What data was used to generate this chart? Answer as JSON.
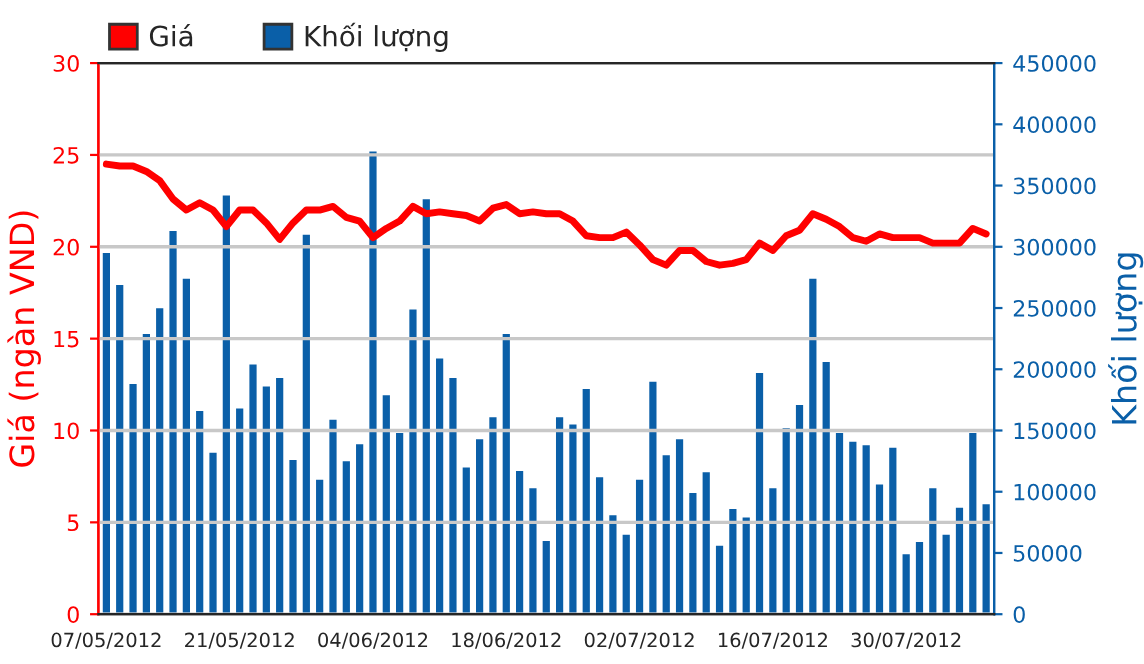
{
  "chart_data": {
    "type": "bar",
    "ylabel": "Giá (ngàn VND)",
    "y2label": "Khối lượng",
    "categories": [
      "07/05/2012",
      null,
      null,
      null,
      null,
      null,
      null,
      null,
      null,
      null,
      "21/05/2012",
      null,
      null,
      null,
      null,
      null,
      null,
      null,
      null,
      null,
      "04/06/2012",
      null,
      null,
      null,
      null,
      null,
      null,
      null,
      null,
      null,
      "18/06/2012",
      null,
      null,
      null,
      null,
      null,
      null,
      null,
      null,
      null,
      "02/07/2012",
      null,
      null,
      null,
      null,
      null,
      null,
      null,
      null,
      null,
      "16/07/2012",
      null,
      null,
      null,
      null,
      null,
      null,
      null,
      null,
      null,
      "30/07/2012",
      null,
      null,
      null,
      null,
      null,
      null
    ],
    "series": [
      {
        "name": "Khối lượng",
        "axis": "y2",
        "color": "#0a5fa8",
        "values": [
          296000,
          270000,
          189000,
          230000,
          251000,
          314000,
          275000,
          167000,
          133000,
          343000,
          169000,
          205000,
          187000,
          194000,
          127000,
          311000,
          111000,
          160000,
          126000,
          140000,
          379000,
          180000,
          149000,
          250000,
          340000,
          210000,
          194000,
          121000,
          144000,
          162000,
          230000,
          118000,
          104000,
          61000,
          162000,
          156000,
          185000,
          113000,
          82000,
          66000,
          111000,
          191000,
          131000,
          144000,
          100000,
          117000,
          57000,
          87000,
          80000,
          198000,
          104000,
          153000,
          172000,
          275000,
          207000,
          149000,
          142000,
          139000,
          107000,
          137000,
          50000,
          60000,
          104000,
          66000,
          88000,
          149000,
          91000
        ]
      },
      {
        "name": "Giá",
        "type": "line",
        "axis": "y",
        "color": "#ff0000",
        "values": [
          24.5,
          24.4,
          24.4,
          24.1,
          23.6,
          22.6,
          22.0,
          22.4,
          22.0,
          21.1,
          22.0,
          22.0,
          21.3,
          20.4,
          21.3,
          22.0,
          22.0,
          22.2,
          21.6,
          21.4,
          20.5,
          21.0,
          21.4,
          22.2,
          21.8,
          21.9,
          21.8,
          21.7,
          21.4,
          22.1,
          22.3,
          21.8,
          21.9,
          21.8,
          21.8,
          21.4,
          20.6,
          20.5,
          20.5,
          20.8,
          20.1,
          19.3,
          19.0,
          19.8,
          19.8,
          19.2,
          19.0,
          19.1,
          19.3,
          20.2,
          19.8,
          20.6,
          20.9,
          21.8,
          21.5,
          21.1,
          20.5,
          20.3,
          20.7,
          20.5,
          20.5,
          20.5,
          20.2,
          20.2,
          20.2,
          21.0,
          20.7
        ]
      }
    ],
    "ylim": [
      0,
      30
    ],
    "yticks": [
      0,
      5,
      10,
      15,
      20,
      25,
      30
    ],
    "y2lim": [
      0,
      450000
    ],
    "y2ticks": [
      0,
      50000,
      100000,
      150000,
      200000,
      250000,
      300000,
      350000,
      400000,
      450000
    ],
    "grid": "y",
    "legend": "top left",
    "marker": "none",
    "line_style": "solid"
  }
}
